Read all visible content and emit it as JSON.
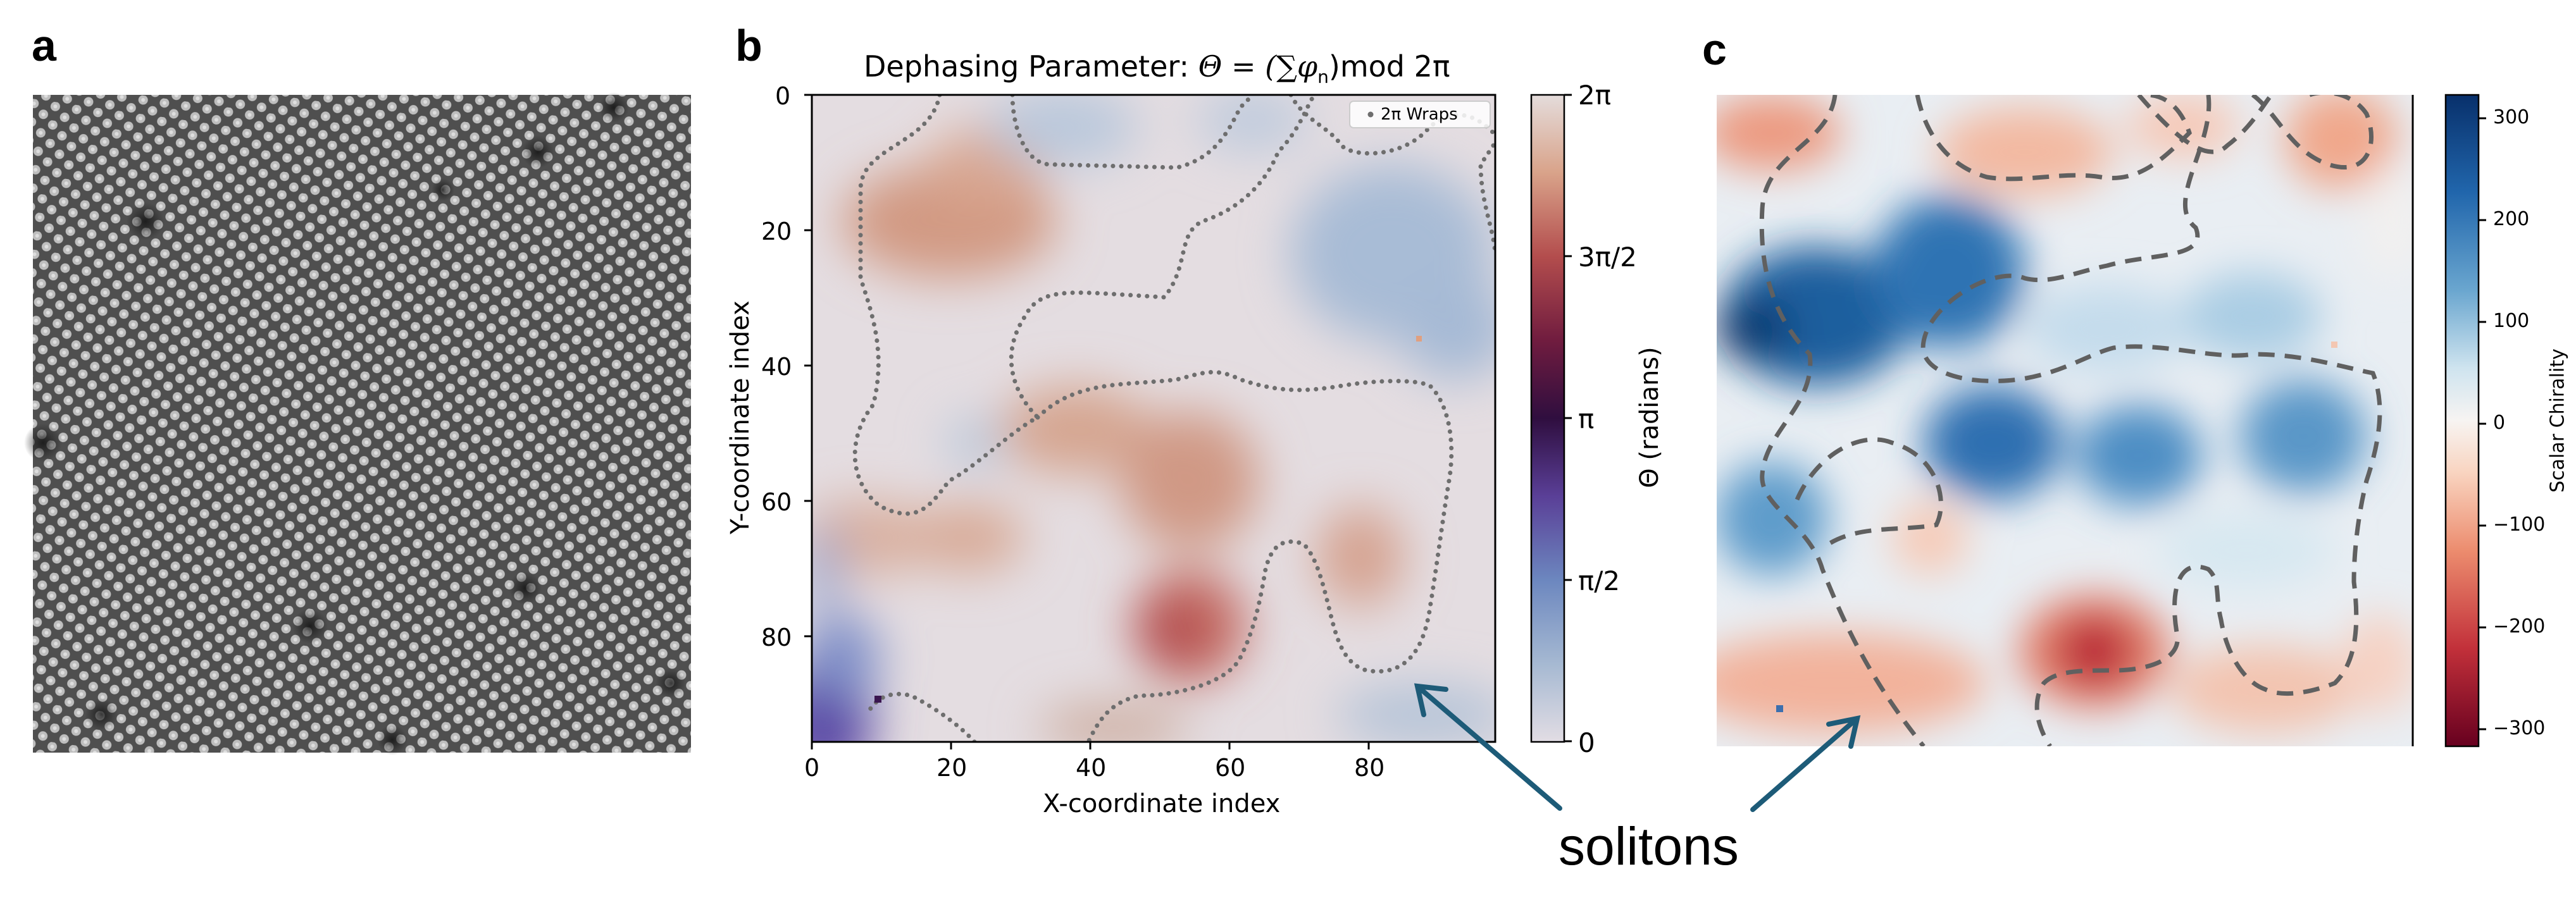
{
  "figure": {
    "panel_labels": [
      "a",
      "b",
      "c"
    ],
    "annotation": "solitons",
    "colors": {
      "arrow": "#1d5b78",
      "contour": "#666666",
      "dots": "#6e6e6e"
    }
  },
  "chart_data": [
    {
      "panel": "a",
      "type": "image",
      "description_label": "",
      "title": ""
    },
    {
      "panel": "b",
      "type": "heatmap",
      "title_prefix": "Dephasing Parameter: ",
      "title_formula": "Θ = (∑φ",
      "title_sub": "n",
      "title_suffix": ")mod 2π",
      "xlabel": "X-coordinate index",
      "ylabel": "Y-coordinate index",
      "xlim": [
        0,
        98
      ],
      "ylim": [
        98,
        0
      ],
      "x_ticks": [
        0,
        20,
        40,
        60,
        80
      ],
      "y_ticks": [
        0,
        20,
        40,
        60,
        80
      ],
      "legend_entry": "2π Wraps",
      "colorbar": {
        "label": "Θ (radians)",
        "tick_labels": [
          "2π",
          "3π/2",
          "π",
          "π/2",
          "0"
        ],
        "range": [
          0,
          6.283
        ]
      }
    },
    {
      "panel": "c",
      "type": "heatmap",
      "colorbar": {
        "label": "Scalar Chirality",
        "ticks": [
          300,
          200,
          100,
          0,
          -100,
          -200,
          -300
        ],
        "tick_labels": [
          "300",
          "200",
          "100",
          "0",
          "−100",
          "−200",
          "−300"
        ],
        "range": [
          -320,
          320
        ]
      }
    }
  ]
}
